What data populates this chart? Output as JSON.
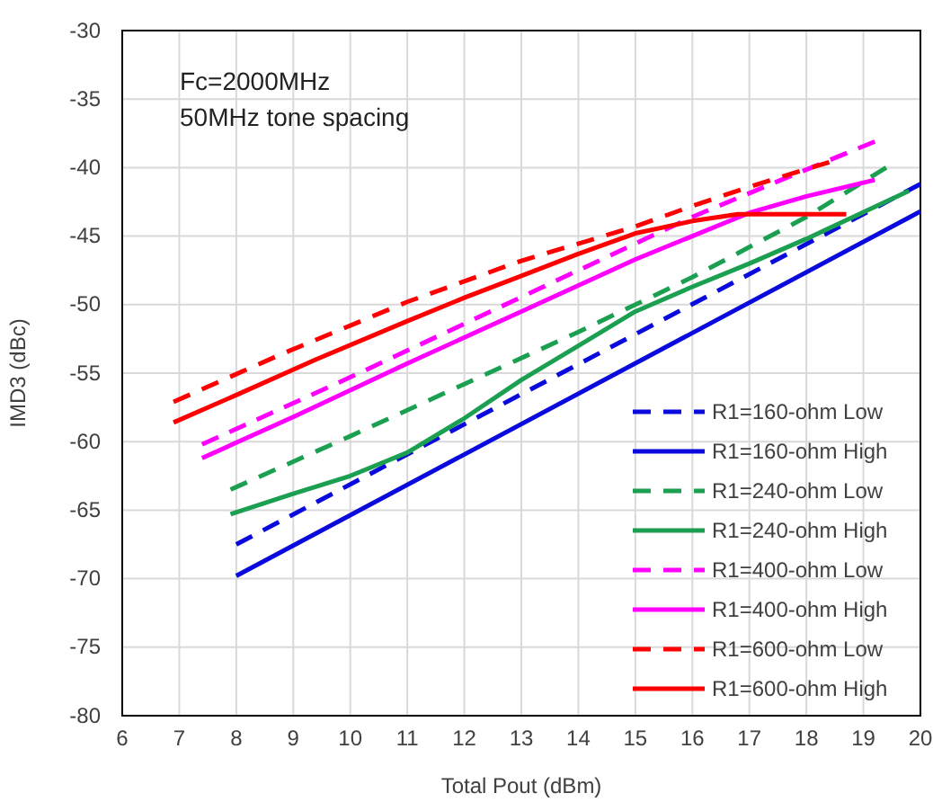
{
  "chart_data": {
    "type": "line",
    "xlabel": "Total Pout (dBm)",
    "ylabel": "IMD3 (dBc)",
    "annotations": [
      "Fc=2000MHz",
      "50MHz tone spacing"
    ],
    "xlim": [
      6,
      20
    ],
    "xticks": [
      6,
      7,
      8,
      9,
      10,
      11,
      12,
      13,
      14,
      15,
      16,
      17,
      18,
      19,
      20
    ],
    "ylim": [
      -80,
      -30
    ],
    "yticks": [
      -80,
      -75,
      -70,
      -65,
      -60,
      -55,
      -50,
      -45,
      -40,
      -35,
      -30
    ],
    "grid": true,
    "legend": "bottom right",
    "marker": "none",
    "series": [
      {
        "name": "R1=160-ohm Low",
        "color": "#0a0adc",
        "line_style": "dashed",
        "x": [
          8,
          20
        ],
        "values": [
          -67.5,
          -41.2
        ]
      },
      {
        "name": "R1=160-ohm High",
        "color": "#0a0adc",
        "line_style": "solid",
        "x": [
          8,
          20
        ],
        "values": [
          -69.8,
          -43.2
        ]
      },
      {
        "name": "R1=240-ohm Low",
        "color": "#1aa050",
        "line_style": "dashed",
        "x": [
          7.9,
          10,
          12,
          14,
          16,
          18,
          19.4
        ],
        "values": [
          -63.5,
          -59.6,
          -55.8,
          -52,
          -48,
          -43.6,
          -40
        ]
      },
      {
        "name": "R1=240-ohm High",
        "color": "#1aa050",
        "line_style": "solid",
        "x": [
          7.9,
          9,
          10,
          11,
          12,
          13,
          14,
          15,
          16,
          17,
          18,
          19.8
        ],
        "values": [
          -65.3,
          -63.8,
          -62.5,
          -60.8,
          -58.3,
          -55.5,
          -53,
          -50.5,
          -48.7,
          -47,
          -45.2,
          -41.7
        ]
      },
      {
        "name": "R1=400-ohm Low",
        "color": "#ff00ff",
        "line_style": "dashed",
        "x": [
          7.4,
          10,
          12,
          14,
          16,
          17.5,
          19.2
        ],
        "values": [
          -60.2,
          -55.3,
          -51.4,
          -47.5,
          -43.6,
          -41,
          -38.1
        ]
      },
      {
        "name": "R1=400-ohm High",
        "color": "#ff00ff",
        "line_style": "solid",
        "x": [
          7.4,
          9,
          11,
          13,
          15,
          16,
          17,
          18,
          19.2
        ],
        "values": [
          -61.2,
          -58.2,
          -54.3,
          -50.5,
          -46.7,
          -45,
          -43.3,
          -42.1,
          -40.9
        ]
      },
      {
        "name": "R1=600-ohm Low",
        "color": "#ff0000",
        "line_style": "dashed",
        "x": [
          6.9,
          8.8,
          11,
          13,
          15,
          16,
          17,
          18.4
        ],
        "values": [
          -57.1,
          -53.6,
          -49.8,
          -46.8,
          -44.3,
          -42.8,
          -41.4,
          -39.6
        ]
      },
      {
        "name": "R1=600-ohm High",
        "color": "#ff0000",
        "line_style": "solid",
        "x": [
          6.9,
          8,
          9.4,
          11,
          12,
          13,
          14,
          15,
          16,
          16.8,
          18.7
        ],
        "values": [
          -58.6,
          -56.6,
          -54,
          -51.2,
          -49.5,
          -47.9,
          -46.3,
          -44.8,
          -43.9,
          -43.4,
          -43.4
        ]
      }
    ]
  }
}
